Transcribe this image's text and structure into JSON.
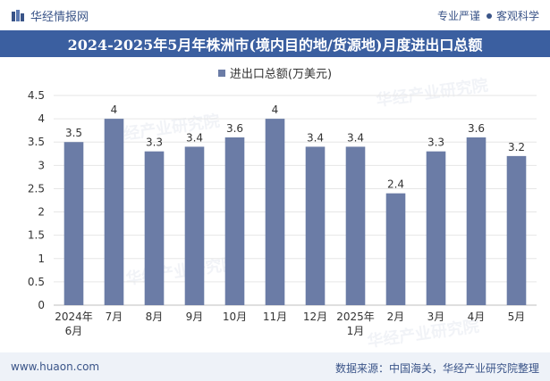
{
  "header": {
    "brand": "华经情报网",
    "tagline_left": "专业严谨",
    "tagline_right": "客观科学"
  },
  "chart_data": {
    "type": "bar",
    "title": "2024-2025年5月年株洲市(境内目的地/货源地)月度进出口总额",
    "legend": "进出口总额(万美元)",
    "categories": [
      "2024年6月",
      "7月",
      "8月",
      "9月",
      "10月",
      "11月",
      "12月",
      "2025年1月",
      "2月",
      "3月",
      "4月",
      "5月"
    ],
    "values": [
      3.5,
      4,
      3.3,
      3.4,
      3.6,
      4,
      3.4,
      3.4,
      2.4,
      3.3,
      3.6,
      3.2
    ],
    "value_labels": [
      "3.5",
      "4",
      "3.3",
      "3.4",
      "3.6",
      "4",
      "3.4",
      "3.4",
      "2.4",
      "3.3",
      "3.6",
      "3.2"
    ],
    "ylim": [
      0,
      4.5
    ],
    "yticks": [
      "0",
      "0.5",
      "1",
      "1.5",
      "2",
      "2.5",
      "3",
      "3.5",
      "4",
      "4.5"
    ],
    "bar_color": "#6b7ca6",
    "grid": true
  },
  "footer": {
    "website": "www.huaon.com",
    "source": "数据来源：中国海关，华经产业研究院整理"
  },
  "watermark": "华经产业研究院"
}
